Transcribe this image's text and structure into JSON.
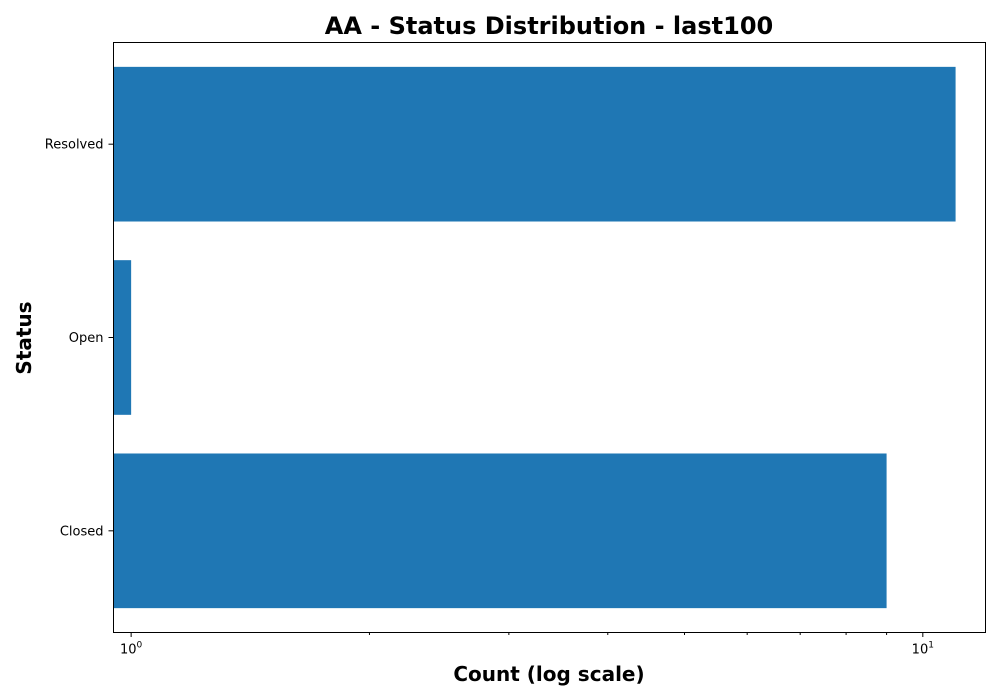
{
  "chart_data": {
    "type": "bar",
    "orientation": "horizontal",
    "title": "AA - Status Distribution - last100",
    "xlabel": "Count (log scale)",
    "ylabel": "Status",
    "x_scale": "log",
    "xlim": [
      0.95,
      12
    ],
    "categories": [
      "Closed",
      "Open",
      "Resolved"
    ],
    "values": [
      9,
      1,
      11
    ],
    "x_major_ticks": [
      {
        "value": 1,
        "base": "10",
        "exponent": "0"
      },
      {
        "value": 10,
        "base": "10",
        "exponent": "1"
      }
    ],
    "x_minor_ticks": [
      2,
      3,
      4,
      5,
      6,
      7,
      8,
      9
    ],
    "bar_color": "#1f77b4",
    "grid": false,
    "legend": "none"
  }
}
